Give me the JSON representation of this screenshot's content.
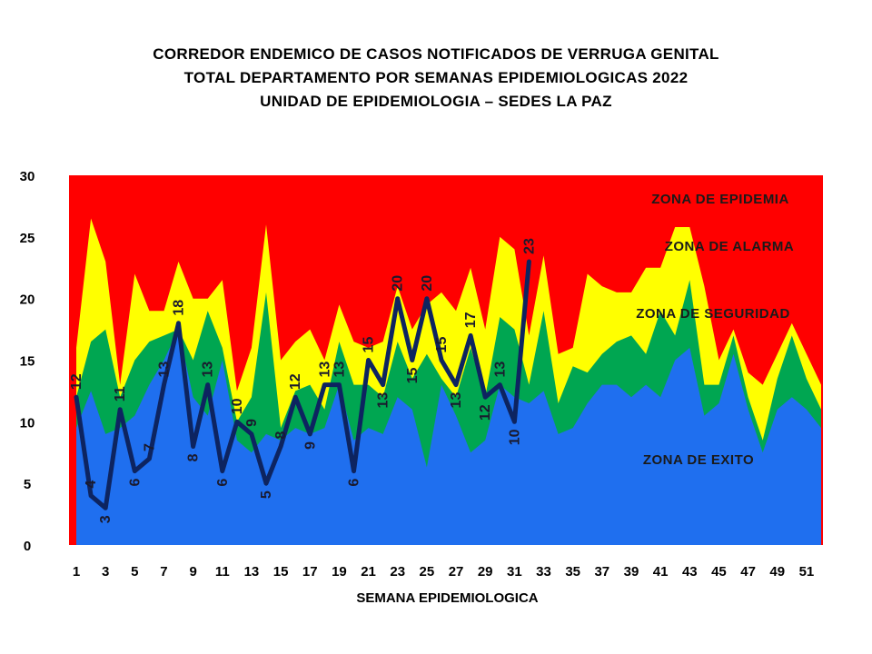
{
  "title_lines": [
    "CORREDOR ENDEMICO  DE CASOS NOTIFICADOS  DE VERRUGA  GENITAL",
    "TOTAL DEPARTAMENTO  POR SEMANAS  EPIDEMIOLOGICAS  2022",
    "UNIDAD  DE EPIDEMIOLOGIA  – SEDES LA PAZ"
  ],
  "chart_data": {
    "type": "area",
    "xlabel": "SEMANA EPIDEMIOLOGICA",
    "ylabel": "",
    "ylim": [
      0,
      30
    ],
    "yticks": [
      0,
      5,
      10,
      15,
      20,
      25,
      30
    ],
    "x": [
      1,
      2,
      3,
      4,
      5,
      6,
      7,
      8,
      9,
      10,
      11,
      12,
      13,
      14,
      15,
      16,
      17,
      18,
      19,
      20,
      21,
      22,
      23,
      24,
      25,
      26,
      27,
      28,
      29,
      30,
      31,
      32,
      33,
      34,
      35,
      36,
      37,
      38,
      39,
      40,
      41,
      42,
      43,
      44,
      45,
      46,
      47,
      48,
      49,
      50,
      51,
      52
    ],
    "xtick_labels": [
      "1",
      "3",
      "5",
      "7",
      "9",
      "11",
      "13",
      "15",
      "17",
      "19",
      "21",
      "23",
      "25",
      "27",
      "29",
      "31",
      "33",
      "35",
      "37",
      "39",
      "41",
      "43",
      "45",
      "47",
      "49",
      "51"
    ],
    "zones": [
      {
        "name": "ZONA DE  EXITO",
        "color": "#1f6fef",
        "values": [
          9.5,
          12.5,
          9,
          9.5,
          10.5,
          13,
          15,
          17.5,
          12,
          10.5,
          15,
          8.5,
          7.5,
          9,
          8.5,
          9.5,
          9,
          9.5,
          13,
          8.5,
          9.5,
          9,
          12,
          11,
          6.3,
          13,
          10.5,
          7.5,
          8.5,
          13,
          12,
          11.5,
          12.5,
          9,
          9.5,
          11.5,
          13,
          13,
          12,
          13,
          12,
          15,
          16,
          10.5,
          11.5,
          15.5,
          11,
          7.5,
          11,
          12,
          11,
          9.5
        ]
      },
      {
        "name": "ZONA DE  SEGURIDAD",
        "color": "#00a651",
        "values": [
          12,
          16.5,
          17.5,
          12,
          15,
          16.5,
          17,
          17.5,
          15,
          19,
          16,
          10,
          12,
          20.5,
          9.5,
          12.5,
          13,
          11,
          16.5,
          13,
          13,
          12,
          16.5,
          13.5,
          15.5,
          13.5,
          12,
          16,
          12,
          18.5,
          17.5,
          13,
          19,
          11.5,
          14.5,
          14,
          15.5,
          16.5,
          17,
          15.5,
          19,
          17,
          21.5,
          13,
          13,
          17,
          12,
          8.5,
          13.5,
          17,
          13.5,
          11
        ]
      },
      {
        "name": "ZONA DE ALARMA",
        "color": "#ffff00",
        "values": [
          16,
          26.5,
          23,
          13,
          22,
          19,
          19,
          23,
          20,
          20,
          21.5,
          12.5,
          16,
          26,
          15,
          16.5,
          17.5,
          15,
          19.5,
          16.5,
          16,
          16.5,
          21,
          17.5,
          19.5,
          20.5,
          19,
          22.5,
          17.5,
          25,
          24,
          17,
          23.5,
          15.5,
          16,
          22,
          21,
          20.5,
          20.5,
          22.5,
          22.5,
          25.8,
          25.8,
          21,
          15,
          17.5,
          14,
          13,
          15.5,
          18,
          15.5,
          13
        ]
      },
      {
        "name": "ZONA DE EPIDEMIA",
        "color": "#ff0000",
        "values": []
      }
    ],
    "series": [
      {
        "name": "",
        "color": "#0d2460",
        "x": [
          1,
          2,
          3,
          4,
          5,
          6,
          7,
          8,
          9,
          10,
          11,
          12,
          13,
          14,
          15,
          16,
          17,
          18,
          19,
          20,
          21,
          22,
          23,
          24,
          25,
          26,
          27,
          28,
          29,
          30,
          31,
          32
        ],
        "values": [
          12,
          4,
          3,
          11,
          6,
          7,
          13,
          18,
          8,
          13,
          6,
          10,
          9,
          5,
          8,
          12,
          9,
          13,
          13,
          6,
          15,
          13,
          20,
          15,
          20,
          15,
          13,
          17,
          12,
          13,
          10,
          23
        ]
      }
    ],
    "legend_placement": "inside-right",
    "grid": false
  }
}
